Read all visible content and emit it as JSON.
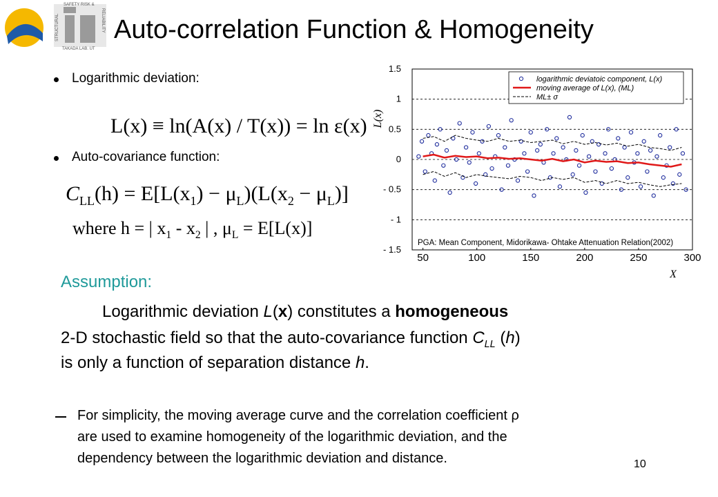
{
  "title": "Auto-correlation Function & Homogeneity",
  "logo_texts": [
    "SAFETY RISK &",
    "RELIABILITY",
    "STRUCTURAL",
    "TAKADA LAB. UT"
  ],
  "bullets": [
    "Logarithmic deviation:",
    "Auto-covariance function:"
  ],
  "formula1": "L(x) ≡ ln(A(x) / T(x)) = ln ε(x)",
  "formula2": [
    "C",
    "LL",
    "(h) = E[L(x",
    "1",
    ") − μ",
    "L",
    ")(L(x",
    "2",
    " − μ",
    "L",
    ")]"
  ],
  "formula3": [
    "where h = | x",
    "1",
    " - x",
    "2",
    " | ,    μ",
    "L",
    " = E[L(x)]"
  ],
  "assumption": {
    "heading": "Assumption:",
    "lines": [
      [
        "Logarithmic deviation ",
        "L",
        "(",
        "x",
        ") constitutes a ",
        "homogeneous"
      ],
      [
        "2-D stochastic field so that the auto-covariance function ",
        "C",
        "LL",
        " (",
        "h",
        ")"
      ],
      [
        "is only a function of separation distance ",
        "h",
        "."
      ]
    ]
  },
  "note_lines": [
    "For simplicity, the moving average curve and the correlation coefficient ρ",
    "are used to examine homogeneity of the logarithmic deviation, and the",
    "dependency between the logarithmic deviation and distance."
  ],
  "page_number": "10",
  "chart_data": {
    "type": "scatter",
    "xlim": [
      40,
      300
    ],
    "ylim": [
      -1.5,
      1.5
    ],
    "xticks": [
      50,
      100,
      150,
      200,
      250,
      300
    ],
    "yticks": [
      1.5,
      1,
      0.5,
      0,
      {
        "value": -0.5,
        "label": "- 0.5"
      },
      {
        "value": -1,
        "label": "- 1"
      },
      {
        "value": -1.5,
        "label": "- 1.5"
      }
    ],
    "grid": "y",
    "legend": "upper right",
    "y_label": "L(x)",
    "x_label": "X",
    "annotation": "PGA: Mean Component, Midorikawa- Ohtake Attenuation Relation(2002)",
    "series": [
      {
        "name": "logarithmic deviatoic component, L(x)",
        "color": "#1c2a9c",
        "style": "marker",
        "x": [
          46,
          49,
          52,
          55,
          58,
          61,
          63,
          66,
          69,
          72,
          75,
          78,
          81,
          84,
          87,
          90,
          93,
          96,
          99,
          102,
          105,
          108,
          111,
          114,
          117,
          120,
          123,
          126,
          129,
          132,
          135,
          138,
          141,
          144,
          147,
          150,
          153,
          156,
          159,
          162,
          165,
          168,
          171,
          174,
          177,
          180,
          183,
          186,
          189,
          192,
          195,
          198,
          201,
          204,
          207,
          210,
          213,
          216,
          219,
          222,
          225,
          228,
          231,
          234,
          237,
          240,
          243,
          246,
          249,
          252,
          255,
          258,
          261,
          264,
          267,
          270,
          273,
          276,
          279,
          282,
          285,
          288,
          291,
          294
        ],
        "values": [
          0.05,
          0.3,
          -0.2,
          0.4,
          0.1,
          -0.35,
          0.25,
          0.5,
          -0.1,
          0.15,
          -0.55,
          0.35,
          0.0,
          0.6,
          -0.3,
          0.2,
          -0.05,
          0.45,
          -0.4,
          0.1,
          0.3,
          -0.25,
          0.55,
          -0.15,
          0.05,
          0.4,
          -0.5,
          0.2,
          -0.1,
          0.65,
          0.0,
          -0.35,
          0.3,
          0.1,
          -0.2,
          0.45,
          -0.6,
          0.15,
          0.25,
          -0.05,
          0.5,
          -0.3,
          0.1,
          0.35,
          -0.45,
          0.2,
          0.0,
          0.7,
          -0.25,
          0.15,
          -0.1,
          0.4,
          -0.55,
          0.05,
          0.3,
          -0.2,
          0.25,
          -0.4,
          0.1,
          0.5,
          -0.15,
          0.0,
          0.35,
          -0.5,
          0.2,
          -0.3,
          0.45,
          -0.05,
          0.1,
          -0.45,
          0.3,
          -0.2,
          0.15,
          -0.6,
          0.05,
          0.4,
          -0.3,
          -0.1,
          0.2,
          -0.4,
          0.5,
          -0.25,
          0.1,
          -0.5
        ]
      },
      {
        "name": "moving average of L(x), (ML)",
        "color": "#e01818",
        "style": "line",
        "x": [
          50,
          60,
          70,
          80,
          90,
          100,
          110,
          120,
          130,
          140,
          150,
          160,
          170,
          180,
          190,
          200,
          210,
          220,
          230,
          240,
          250,
          260,
          270,
          280,
          290
        ],
        "values": [
          0.05,
          0.08,
          0.03,
          0.06,
          0.04,
          0.05,
          0.02,
          0.03,
          0.01,
          0.02,
          0.0,
          -0.02,
          0.01,
          -0.03,
          0.0,
          -0.05,
          -0.02,
          -0.04,
          -0.03,
          -0.06,
          -0.05,
          -0.08,
          -0.1,
          -0.12,
          -0.08
        ]
      },
      {
        "name": "ML± σ",
        "color": "#000000",
        "style": "dashed",
        "x": [
          50,
          60,
          70,
          80,
          90,
          100,
          110,
          120,
          130,
          140,
          150,
          160,
          170,
          180,
          190,
          200,
          210,
          220,
          230,
          240,
          250,
          260,
          270,
          280,
          290
        ],
        "values": [
          0.35,
          0.38,
          0.3,
          0.4,
          0.35,
          0.32,
          0.3,
          0.35,
          0.3,
          0.32,
          0.28,
          0.3,
          0.32,
          0.26,
          0.3,
          0.25,
          0.28,
          0.24,
          0.27,
          0.22,
          0.25,
          0.2,
          0.18,
          0.15,
          0.2
        ],
        "lower": [
          -0.25,
          -0.2,
          -0.28,
          -0.22,
          -0.3,
          -0.25,
          -0.28,
          -0.3,
          -0.32,
          -0.28,
          -0.3,
          -0.35,
          -0.3,
          -0.33,
          -0.3,
          -0.38,
          -0.35,
          -0.4,
          -0.35,
          -0.4,
          -0.38,
          -0.42,
          -0.45,
          -0.42,
          -0.4
        ]
      }
    ]
  }
}
